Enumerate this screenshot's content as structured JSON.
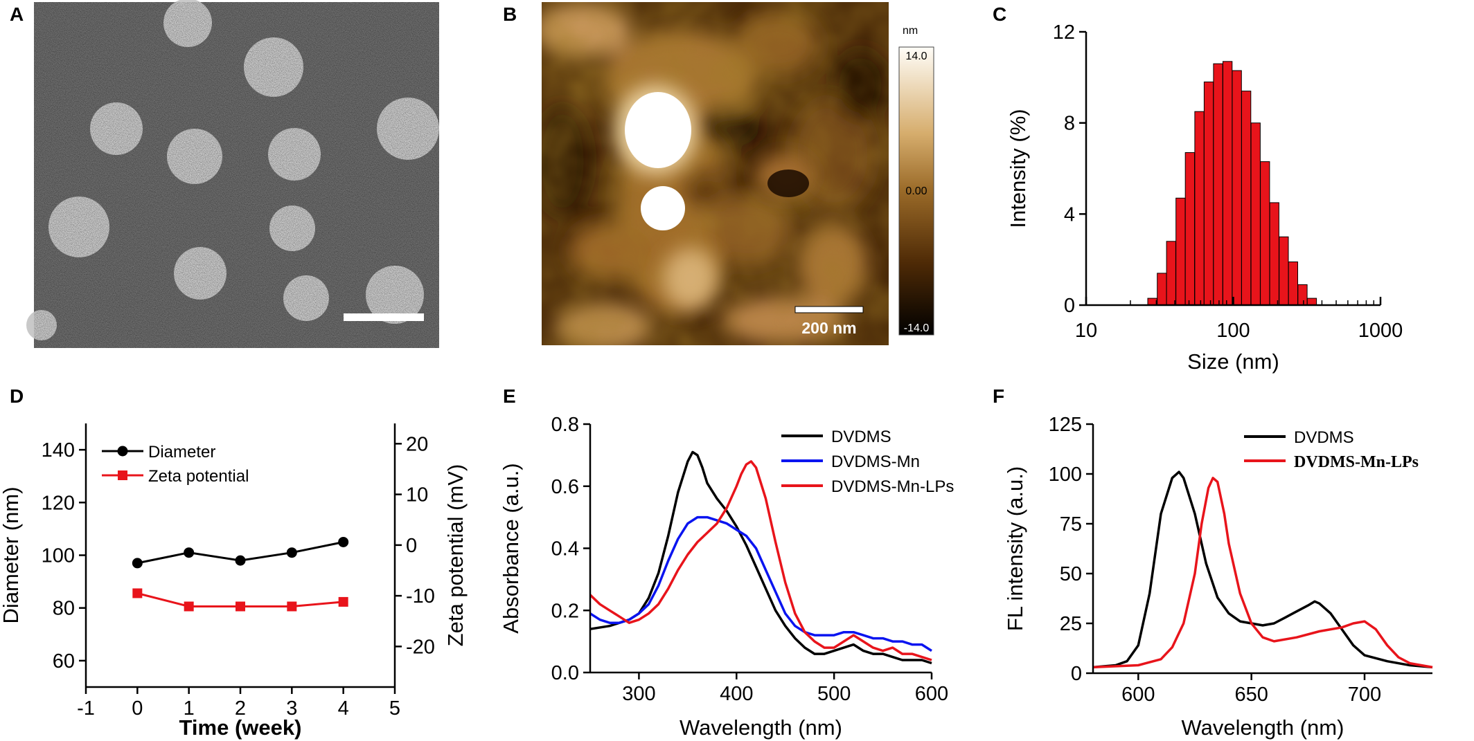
{
  "panels": {
    "A": {
      "label": "A"
    },
    "B": {
      "label": "B",
      "colorbar": {
        "unit": "nm",
        "max": "14.0",
        "mid": "0.00",
        "min": "-14.0"
      },
      "scalebar": "200 nm"
    },
    "C": {
      "label": "C"
    },
    "D": {
      "label": "D"
    },
    "E": {
      "label": "E"
    },
    "F": {
      "label": "F"
    }
  },
  "chart_data": [
    {
      "panel": "C",
      "type": "bar",
      "xscale": "log",
      "xlabel": "Size (nm)",
      "ylabel": "Intensity (%)",
      "xlim": [
        10,
        1000
      ],
      "ylim": [
        0,
        12
      ],
      "xticks": [
        "10",
        "100",
        "1000"
      ],
      "yticks": [
        "0",
        "4",
        "8",
        "12"
      ],
      "color": "#e8141b",
      "x": [
        28.2,
        32.7,
        37.8,
        43.8,
        50.7,
        58.8,
        68.1,
        78.8,
        91.3,
        105.7,
        122.4,
        141.8,
        164.2,
        190.1,
        220.2,
        255.0,
        295.3,
        342.0
      ],
      "values": [
        0.3,
        1.4,
        2.8,
        4.7,
        6.7,
        8.5,
        9.8,
        10.6,
        10.7,
        10.3,
        9.4,
        8.0,
        6.3,
        4.5,
        3.0,
        1.9,
        0.9,
        0.3
      ]
    },
    {
      "panel": "D",
      "type": "line",
      "xlabel": "Time (week)",
      "ylabel": "Diameter (nm)",
      "y2label": "Zeta potential (mV)",
      "xlim": [
        -1,
        5
      ],
      "ylim": [
        50,
        150
      ],
      "y2lim": [
        -28,
        24
      ],
      "xticks": [
        "-1",
        "0",
        "1",
        "2",
        "3",
        "4",
        "5"
      ],
      "yticks": [
        "60",
        "80",
        "100",
        "120",
        "140"
      ],
      "y2ticks": [
        "-20",
        "-10",
        "0",
        "10",
        "20"
      ],
      "series": [
        {
          "name": "Diameter",
          "axis": "left",
          "color": "#000000",
          "marker": "circle",
          "x": [
            0,
            1,
            2,
            3,
            4
          ],
          "values": [
            97,
            101,
            98,
            101,
            105
          ]
        },
        {
          "name": "Zeta potential",
          "axis": "right",
          "color": "#e8141b",
          "marker": "square",
          "x": [
            0,
            1,
            2,
            3,
            4
          ],
          "values": [
            -9.5,
            -12.1,
            -12.1,
            -12.1,
            -11.2
          ]
        }
      ]
    },
    {
      "panel": "E",
      "type": "line",
      "xlabel": "Wavelength (nm)",
      "ylabel": "Absorbance (a.u.)",
      "xlim": [
        250,
        600
      ],
      "ylim": [
        0,
        0.8
      ],
      "xticks": [
        "300",
        "400",
        "500",
        "600"
      ],
      "yticks": [
        "0.0",
        "0.2",
        "0.4",
        "0.6",
        "0.8"
      ],
      "series": [
        {
          "name": "DVDMS",
          "color": "#000000",
          "x": [
            250,
            270,
            290,
            300,
            310,
            320,
            330,
            340,
            350,
            355,
            360,
            365,
            370,
            380,
            390,
            400,
            410,
            420,
            430,
            440,
            450,
            460,
            470,
            480,
            490,
            500,
            510,
            520,
            530,
            540,
            550,
            560,
            570,
            580,
            590,
            600
          ],
          "values": [
            0.14,
            0.15,
            0.17,
            0.19,
            0.24,
            0.32,
            0.44,
            0.58,
            0.68,
            0.71,
            0.7,
            0.66,
            0.61,
            0.56,
            0.52,
            0.47,
            0.41,
            0.34,
            0.27,
            0.2,
            0.15,
            0.11,
            0.08,
            0.06,
            0.06,
            0.07,
            0.08,
            0.09,
            0.07,
            0.06,
            0.06,
            0.05,
            0.04,
            0.04,
            0.04,
            0.03
          ]
        },
        {
          "name": "DVDMS-Mn",
          "color": "#0a14f0",
          "x": [
            250,
            260,
            270,
            280,
            290,
            300,
            310,
            320,
            330,
            340,
            350,
            360,
            370,
            380,
            390,
            400,
            410,
            420,
            430,
            440,
            450,
            460,
            470,
            480,
            490,
            500,
            510,
            520,
            530,
            540,
            550,
            560,
            570,
            580,
            590,
            600
          ],
          "values": [
            0.19,
            0.17,
            0.16,
            0.16,
            0.17,
            0.19,
            0.22,
            0.28,
            0.36,
            0.43,
            0.48,
            0.5,
            0.5,
            0.49,
            0.48,
            0.46,
            0.44,
            0.4,
            0.33,
            0.26,
            0.19,
            0.15,
            0.13,
            0.12,
            0.12,
            0.12,
            0.13,
            0.13,
            0.12,
            0.11,
            0.11,
            0.1,
            0.1,
            0.09,
            0.09,
            0.07
          ]
        },
        {
          "name": "DVDMS-Mn-LPs",
          "color": "#e8141b",
          "x": [
            250,
            260,
            270,
            280,
            290,
            300,
            310,
            320,
            330,
            340,
            350,
            360,
            370,
            380,
            390,
            400,
            405,
            410,
            415,
            420,
            430,
            440,
            450,
            460,
            470,
            480,
            490,
            500,
            510,
            520,
            530,
            540,
            550,
            560,
            570,
            580,
            590,
            600
          ],
          "values": [
            0.25,
            0.22,
            0.2,
            0.18,
            0.16,
            0.17,
            0.19,
            0.22,
            0.27,
            0.33,
            0.38,
            0.42,
            0.45,
            0.48,
            0.53,
            0.6,
            0.64,
            0.67,
            0.68,
            0.66,
            0.56,
            0.42,
            0.29,
            0.19,
            0.13,
            0.1,
            0.08,
            0.08,
            0.1,
            0.12,
            0.1,
            0.08,
            0.07,
            0.08,
            0.06,
            0.06,
            0.05,
            0.04
          ]
        }
      ]
    },
    {
      "panel": "F",
      "type": "line",
      "xlabel": "Wavelength (nm)",
      "ylabel": "FL intensity (a.u.)",
      "xlim": [
        580,
        730
      ],
      "ylim": [
        0,
        125
      ],
      "xticks": [
        "600",
        "650",
        "700"
      ],
      "yticks": [
        "0",
        "25",
        "50",
        "75",
        "100",
        "125"
      ],
      "series": [
        {
          "name": "DVDMS",
          "color": "#000000",
          "x": [
            580,
            590,
            595,
            600,
            605,
            610,
            615,
            618,
            620,
            625,
            630,
            635,
            640,
            645,
            650,
            655,
            660,
            665,
            670,
            675,
            678,
            680,
            685,
            690,
            695,
            700,
            710,
            720,
            730
          ],
          "values": [
            3,
            4,
            6,
            14,
            40,
            80,
            98,
            101,
            98,
            80,
            55,
            38,
            30,
            26,
            25,
            24,
            25,
            28,
            31,
            34,
            36,
            35,
            30,
            22,
            14,
            9,
            6,
            4,
            3
          ]
        },
        {
          "name": "DVDMS-Mn-LPs",
          "color": "#e8141b",
          "x": [
            580,
            600,
            610,
            615,
            620,
            625,
            628,
            631,
            633,
            635,
            638,
            640,
            645,
            650,
            655,
            660,
            670,
            680,
            690,
            695,
            700,
            705,
            710,
            715,
            720,
            730
          ],
          "values": [
            3,
            4,
            7,
            13,
            25,
            50,
            75,
            93,
            98,
            96,
            80,
            65,
            40,
            25,
            18,
            16,
            18,
            21,
            23,
            25,
            26,
            22,
            14,
            8,
            5,
            3
          ]
        }
      ]
    }
  ]
}
